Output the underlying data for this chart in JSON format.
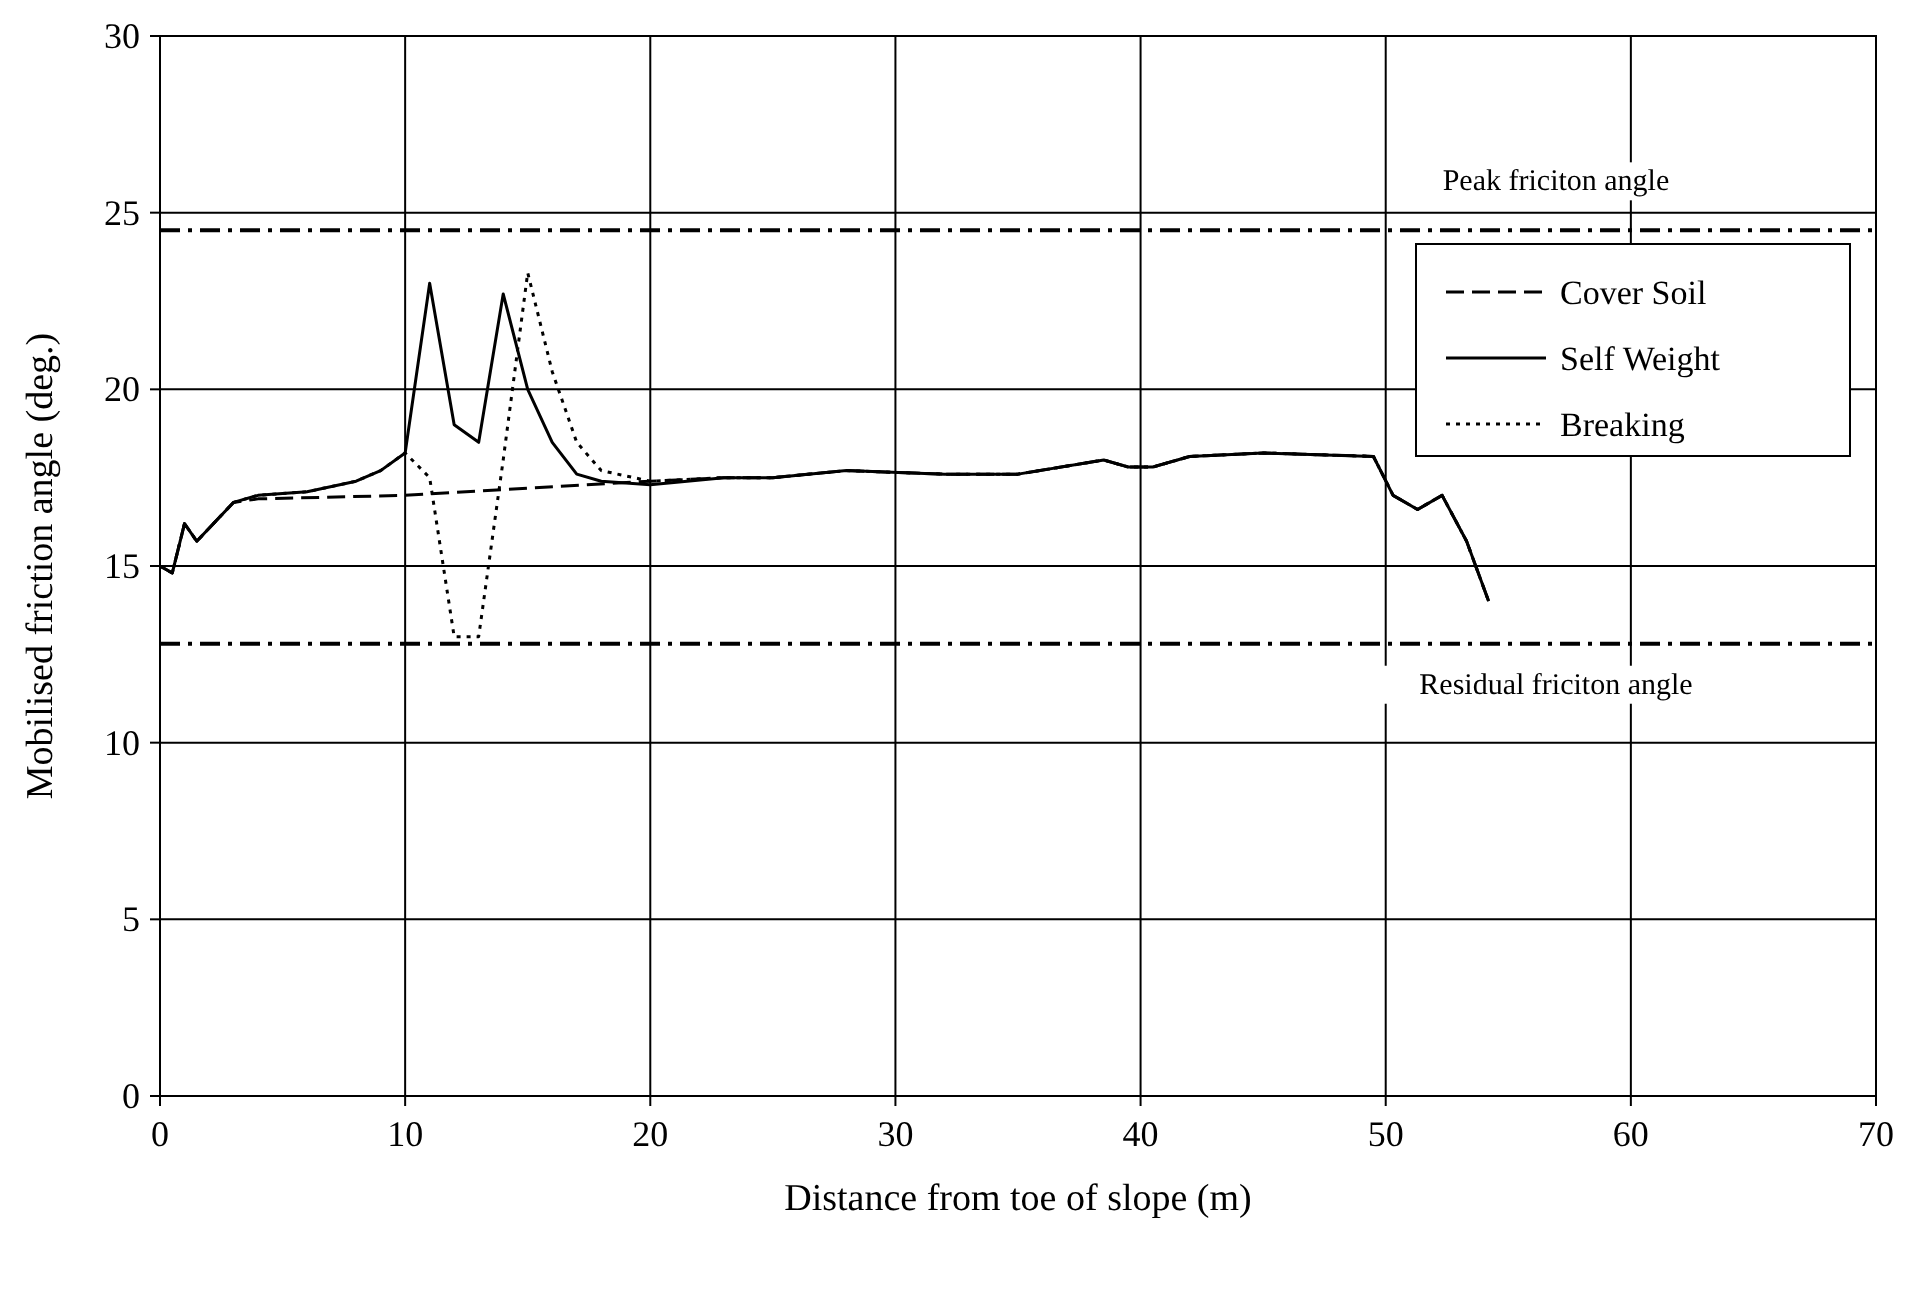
{
  "chart_data": {
    "type": "line",
    "xlabel": "Distance from toe of slope (m)",
    "ylabel": "Mobilised friction angle (deg.)",
    "xlim": [
      0,
      70
    ],
    "xticks": [
      0,
      10,
      20,
      30,
      40,
      50,
      60,
      70
    ],
    "ylim": [
      0,
      30
    ],
    "yticks": [
      0,
      5,
      10,
      15,
      20,
      25,
      30
    ],
    "grid": true,
    "legend": "top right",
    "series": [
      {
        "name": "Cover Soil",
        "color": "#000000",
        "line_style": "dashed",
        "x": [
          0,
          0.5,
          1,
          1.5,
          3,
          4,
          10,
          15,
          20,
          23,
          25,
          28,
          32,
          35,
          38.5,
          39.5,
          40.5,
          42,
          45,
          49.5,
          50.3,
          51.3,
          52.3,
          53.3,
          54.2
        ],
        "values": [
          15,
          14.8,
          16.2,
          15.7,
          16.8,
          16.9,
          17,
          17.2,
          17.4,
          17.5,
          17.5,
          17.7,
          17.6,
          17.6,
          18,
          17.8,
          17.8,
          18.1,
          18.2,
          18.1,
          17,
          16.6,
          17,
          15.7,
          14
        ]
      },
      {
        "name": "Self Weight",
        "color": "#000000",
        "line_style": "solid",
        "x": [
          0,
          0.5,
          1,
          1.5,
          3,
          4,
          6,
          8,
          9,
          10,
          11,
          12,
          13,
          14,
          15,
          16,
          17,
          18,
          20,
          23,
          25,
          28,
          32,
          35,
          38.5,
          39.5,
          40.5,
          42,
          45,
          49.5,
          50.3,
          51.3,
          52.3,
          53.3,
          54.2
        ],
        "values": [
          15,
          14.8,
          16.2,
          15.7,
          16.8,
          17,
          17.1,
          17.4,
          17.7,
          18.2,
          23,
          19,
          18.5,
          22.7,
          20,
          18.5,
          17.6,
          17.4,
          17.3,
          17.5,
          17.5,
          17.7,
          17.6,
          17.6,
          18,
          17.8,
          17.8,
          18.1,
          18.2,
          18.1,
          17,
          16.6,
          17,
          15.7,
          14
        ]
      },
      {
        "name": "Breaking",
        "color": "#000000",
        "line_style": "dotted",
        "x": [
          0,
          0.5,
          1,
          1.5,
          3,
          4,
          6,
          8,
          9,
          10,
          11,
          12,
          13,
          14,
          15,
          16,
          17,
          18,
          20,
          23,
          25,
          28,
          32,
          35,
          38.5,
          39.5,
          40.5,
          42,
          45,
          49.5,
          50.3,
          51.3,
          52.3,
          53.3,
          54.2
        ],
        "values": [
          15,
          14.8,
          16.2,
          15.7,
          16.8,
          17,
          17.1,
          17.4,
          17.7,
          18.2,
          17.5,
          13,
          13,
          18,
          23.3,
          20.5,
          18.5,
          17.7,
          17.4,
          17.5,
          17.5,
          17.7,
          17.6,
          17.6,
          18,
          17.8,
          17.8,
          18.1,
          18.2,
          18.1,
          17,
          16.6,
          17,
          15.7,
          14
        ]
      }
    ],
    "ref_lines": [
      {
        "axis": "y",
        "value": 24.5,
        "label": "Peak friciton angle",
        "line_style": "dashdot",
        "color": "#000000"
      },
      {
        "axis": "y",
        "value": 12.8,
        "label": "Residual friciton angle",
        "line_style": "dashdot",
        "color": "#000000"
      }
    ]
  }
}
